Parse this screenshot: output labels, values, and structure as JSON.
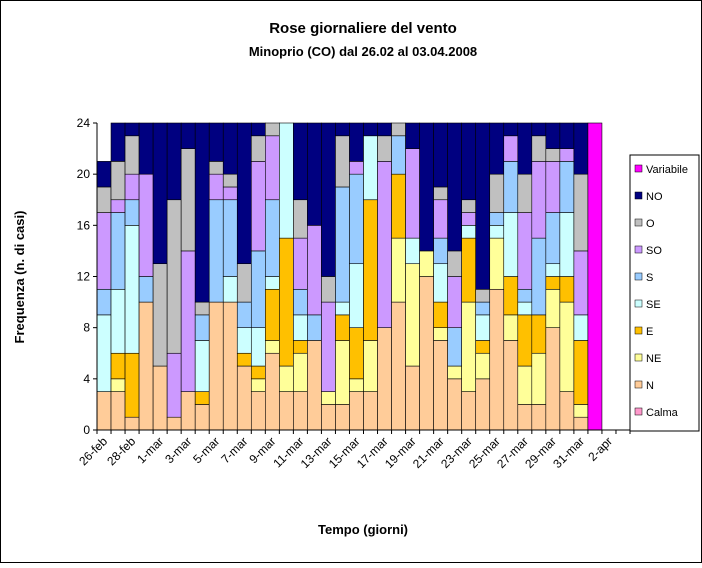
{
  "chart_data": {
    "type": "stacked_bar",
    "title": "Rose giornaliere del vento",
    "subtitle": "Minoprio (CO) dal 26.02 al 03.04.2008",
    "x_label": "Tempo (giorni)",
    "y_label": "Frequenza (n. di casi)",
    "categories": [
      "26-feb",
      null,
      "28-feb",
      null,
      "1-mar",
      null,
      "3-mar",
      null,
      "5-mar",
      null,
      "7-mar",
      null,
      "9-mar",
      null,
      "11-mar",
      null,
      "13-mar",
      null,
      "15-mar",
      null,
      "17-mar",
      null,
      "19-mar",
      null,
      "21-mar",
      null,
      "23-mar",
      null,
      "25-mar",
      null,
      "27-mar",
      null,
      "29-mar",
      null,
      "31-mar",
      null,
      "2-apr",
      null
    ],
    "ylim": [
      0,
      24
    ],
    "yticks": [
      0,
      4,
      8,
      12,
      16,
      20,
      24
    ],
    "legend": "right",
    "series": [
      {
        "name": "Calma",
        "color": "#ff99cc",
        "values": [
          0,
          0,
          0,
          0,
          0,
          0,
          0,
          0,
          0,
          0,
          0,
          0,
          0,
          0,
          0,
          0,
          0,
          0,
          0,
          0,
          0,
          0,
          0,
          0,
          0,
          0,
          0,
          0,
          0,
          0,
          0,
          0,
          0,
          0,
          0,
          0,
          0,
          0
        ]
      },
      {
        "name": "N",
        "color": "#ffcc99",
        "values": [
          3,
          3,
          1,
          10,
          5,
          1,
          3,
          2,
          10,
          10,
          5,
          3,
          6,
          3,
          3,
          7,
          2,
          2,
          3,
          3,
          8,
          10,
          5,
          12,
          7,
          4,
          3,
          4,
          11,
          7,
          2,
          2,
          8,
          3,
          1,
          0,
          0,
          0
        ]
      },
      {
        "name": "NE",
        "color": "#ffff99",
        "values": [
          0,
          1,
          0,
          0,
          0,
          0,
          0,
          0,
          0,
          0,
          0,
          1,
          1,
          2,
          3,
          0,
          1,
          5,
          1,
          4,
          0,
          5,
          8,
          2,
          1,
          1,
          7,
          2,
          4,
          2,
          3,
          4,
          3,
          7,
          1,
          0,
          0,
          0
        ]
      },
      {
        "name": "E",
        "color": "#ffc000",
        "values": [
          0,
          2,
          5,
          0,
          0,
          0,
          0,
          1,
          0,
          0,
          1,
          1,
          4,
          10,
          1,
          0,
          0,
          2,
          4,
          11,
          0,
          5,
          0,
          0,
          2,
          0,
          5,
          1,
          0,
          3,
          4,
          3,
          1,
          2,
          5,
          0,
          0,
          0
        ]
      },
      {
        "name": "SE",
        "color": "#ccffff",
        "values": [
          6,
          5,
          10,
          0,
          0,
          0,
          0,
          4,
          0,
          2,
          2,
          3,
          1,
          9,
          2,
          0,
          0,
          1,
          5,
          5,
          0,
          0,
          2,
          0,
          3,
          0,
          1,
          2,
          1,
          5,
          1,
          0,
          1,
          5,
          2,
          0,
          0,
          0
        ]
      },
      {
        "name": "S",
        "color": "#99ccff",
        "values": [
          2,
          6,
          2,
          2,
          0,
          0,
          0,
          2,
          8,
          6,
          2,
          6,
          6,
          0,
          2,
          2,
          0,
          9,
          7,
          0,
          0,
          3,
          0,
          0,
          2,
          3,
          0,
          1,
          1,
          4,
          1,
          6,
          4,
          4,
          0,
          0,
          0,
          0
        ]
      },
      {
        "name": "SO",
        "color": "#cc99ff",
        "values": [
          6,
          1,
          2,
          8,
          0,
          5,
          11,
          0,
          2,
          1,
          0,
          7,
          5,
          0,
          4,
          7,
          7,
          0,
          1,
          0,
          13,
          0,
          7,
          0,
          3,
          4,
          1,
          0,
          0,
          2,
          6,
          6,
          4,
          1,
          5,
          0,
          0,
          0
        ]
      },
      {
        "name": "O",
        "color": "#c0c0c0",
        "values": [
          2,
          3,
          3,
          0,
          8,
          12,
          8,
          1,
          1,
          1,
          3,
          2,
          1,
          0,
          3,
          0,
          2,
          4,
          0,
          0,
          2,
          1,
          0,
          0,
          1,
          2,
          1,
          1,
          3,
          0,
          3,
          2,
          1,
          0,
          6,
          0,
          0,
          0
        ]
      },
      {
        "name": "NO",
        "color": "#000080",
        "values": [
          2,
          3,
          1,
          4,
          11,
          6,
          2,
          14,
          3,
          4,
          11,
          1,
          0,
          0,
          6,
          8,
          12,
          1,
          3,
          1,
          1,
          0,
          2,
          10,
          5,
          10,
          6,
          13,
          4,
          1,
          4,
          1,
          2,
          2,
          4,
          0,
          0,
          0
        ]
      },
      {
        "name": "Variabile",
        "color": "#ff00ff",
        "values": [
          0,
          0,
          0,
          0,
          0,
          0,
          0,
          0,
          0,
          0,
          0,
          0,
          0,
          0,
          0,
          0,
          0,
          0,
          0,
          0,
          0,
          0,
          0,
          0,
          0,
          0,
          0,
          0,
          0,
          0,
          0,
          0,
          0,
          0,
          0,
          24,
          0,
          0
        ]
      }
    ]
  }
}
